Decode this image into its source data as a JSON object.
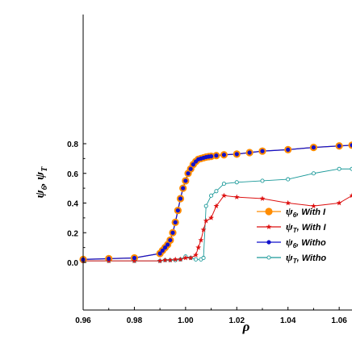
{
  "chart_data": {
    "type": "line",
    "xlabel": "ρ",
    "ylabel": "ψ6, ψT",
    "xlim": [
      0.96,
      1.065
    ],
    "ylim": [
      -0.02,
      0.85
    ],
    "xticks": [
      {
        "value": 0.96,
        "label": "0.96"
      },
      {
        "value": 0.98,
        "label": "0.98"
      },
      {
        "value": 1.0,
        "label": "1.00"
      },
      {
        "value": 1.02,
        "label": "1.02"
      },
      {
        "value": 1.04,
        "label": "1.04"
      },
      {
        "value": 1.06,
        "label": "1.06"
      }
    ],
    "yticks": [
      {
        "value": 0.0,
        "label": "0.0"
      },
      {
        "value": 0.2,
        "label": "0.2"
      },
      {
        "value": 0.4,
        "label": "0.4"
      },
      {
        "value": 0.6,
        "label": "0.6"
      },
      {
        "value": 0.8,
        "label": "0.8"
      }
    ],
    "grid": false,
    "legend_position": "center-right",
    "series": [
      {
        "name": "ψ6 With I",
        "color": "#ff8c00",
        "marker": "filled-circle-large",
        "x": [
          0.96,
          0.97,
          0.98,
          0.99,
          0.991,
          0.992,
          0.993,
          0.994,
          0.995,
          0.996,
          0.997,
          0.998,
          0.999,
          1.0,
          1.001,
          1.002,
          1.003,
          1.004,
          1.005,
          1.006,
          1.007,
          1.008,
          1.009,
          1.01,
          1.012,
          1.015,
          1.02,
          1.025,
          1.03,
          1.04,
          1.05,
          1.06,
          1.065
        ],
        "values": [
          0.02,
          0.025,
          0.03,
          0.06,
          0.08,
          0.1,
          0.12,
          0.15,
          0.2,
          0.27,
          0.35,
          0.43,
          0.5,
          0.55,
          0.6,
          0.63,
          0.66,
          0.68,
          0.695,
          0.7,
          0.705,
          0.71,
          0.713,
          0.715,
          0.72,
          0.725,
          0.73,
          0.74,
          0.75,
          0.76,
          0.775,
          0.785,
          0.79
        ]
      },
      {
        "name": "ψT With I",
        "color": "#dd1111",
        "marker": "star",
        "x": [
          0.96,
          0.97,
          0.98,
          0.99,
          0.992,
          0.994,
          0.996,
          0.998,
          1.0,
          1.002,
          1.004,
          1.005,
          1.006,
          1.007,
          1.008,
          1.01,
          1.012,
          1.015,
          1.02,
          1.03,
          1.04,
          1.05,
          1.06,
          1.065
        ],
        "values": [
          0.01,
          0.01,
          0.01,
          0.01,
          0.015,
          0.015,
          0.02,
          0.02,
          0.03,
          0.03,
          0.05,
          0.1,
          0.15,
          0.22,
          0.28,
          0.3,
          0.38,
          0.45,
          0.44,
          0.43,
          0.4,
          0.38,
          0.4,
          0.45
        ]
      },
      {
        "name": "ψ6 Witho",
        "color": "#1111cc",
        "marker": "filled-circle-small",
        "x": [
          0.96,
          0.97,
          0.98,
          0.99,
          0.991,
          0.992,
          0.993,
          0.994,
          0.995,
          0.996,
          0.997,
          0.998,
          0.999,
          1.0,
          1.001,
          1.002,
          1.003,
          1.004,
          1.005,
          1.006,
          1.007,
          1.008,
          1.009,
          1.01,
          1.012,
          1.015,
          1.02,
          1.025,
          1.03,
          1.04,
          1.05,
          1.06,
          1.065
        ],
        "values": [
          0.02,
          0.025,
          0.03,
          0.06,
          0.08,
          0.1,
          0.12,
          0.15,
          0.2,
          0.27,
          0.35,
          0.43,
          0.5,
          0.55,
          0.6,
          0.63,
          0.66,
          0.68,
          0.695,
          0.7,
          0.705,
          0.71,
          0.713,
          0.715,
          0.72,
          0.725,
          0.73,
          0.74,
          0.75,
          0.76,
          0.775,
          0.785,
          0.79
        ]
      },
      {
        "name": "ψT Witho",
        "color": "#1a9999",
        "marker": "open-circle",
        "x": [
          0.96,
          0.97,
          0.98,
          0.99,
          0.992,
          0.994,
          0.996,
          0.998,
          1.0,
          1.002,
          1.004,
          1.006,
          1.007,
          1.008,
          1.01,
          1.012,
          1.015,
          1.02,
          1.03,
          1.04,
          1.05,
          1.06,
          1.065
        ],
        "values": [
          0.01,
          0.01,
          0.01,
          0.01,
          0.015,
          0.015,
          0.015,
          0.02,
          0.04,
          0.03,
          0.02,
          0.02,
          0.03,
          0.38,
          0.45,
          0.48,
          0.53,
          0.54,
          0.55,
          0.56,
          0.6,
          0.63,
          0.63
        ]
      }
    ],
    "legend": [
      {
        "symbol": "ψ",
        "subscript": "6",
        "text": "With I",
        "series_index": 0
      },
      {
        "symbol": "ψ",
        "subscript": "T",
        "text": "With I",
        "series_index": 1
      },
      {
        "symbol": "ψ",
        "subscript": "6",
        "text": "Witho",
        "series_index": 2
      },
      {
        "symbol": "ψ",
        "subscript": "T",
        "text": "Witho",
        "series_index": 3
      }
    ]
  }
}
